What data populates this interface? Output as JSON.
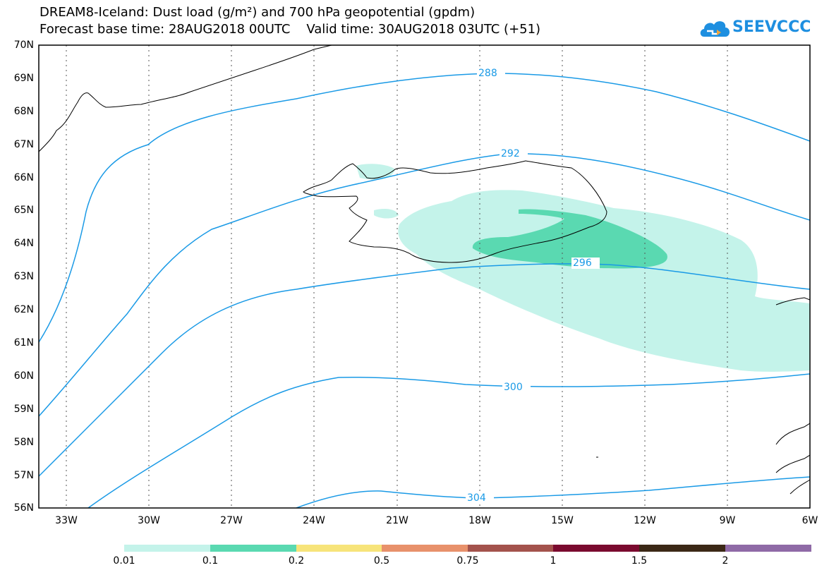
{
  "title_line1": "DREAM8-Iceland: Dust load (g/m²) and 700 hPa geopotential (gpdm)",
  "title_line2": "Forecast base time: 28AUG2018 00UTC    Valid time: 30AUG2018 03UTC (+51)",
  "logo_text": "SEEVCCC",
  "lat_labels": [
    "70N",
    "69N",
    "68N",
    "67N",
    "66N",
    "65N",
    "64N",
    "63N",
    "62N",
    "61N",
    "60N",
    "59N",
    "58N",
    "57N",
    "56N"
  ],
  "lon_labels": [
    "33W",
    "30W",
    "27W",
    "24W",
    "21W",
    "18W",
    "15W",
    "12W",
    "9W",
    "6W"
  ],
  "contour_labels": [
    "288",
    "292",
    "296",
    "300",
    "304"
  ],
  "colorbar": {
    "labels": [
      "0.01",
      "0.1",
      "0.2",
      "0.5",
      "0.75",
      "1",
      "1.5",
      "2"
    ],
    "colors": [
      "#c4f3ea",
      "#5ad9b1",
      "#f7e47a",
      "#e8916b",
      "#a3524c",
      "#7a0a2f",
      "#3b2816",
      "#8f6aa6"
    ]
  },
  "colors": {
    "contour": "#1a9ae6",
    "coast": "#000000",
    "dust_low": "#c4f3ea",
    "dust_mid": "#5ad9b1"
  }
}
